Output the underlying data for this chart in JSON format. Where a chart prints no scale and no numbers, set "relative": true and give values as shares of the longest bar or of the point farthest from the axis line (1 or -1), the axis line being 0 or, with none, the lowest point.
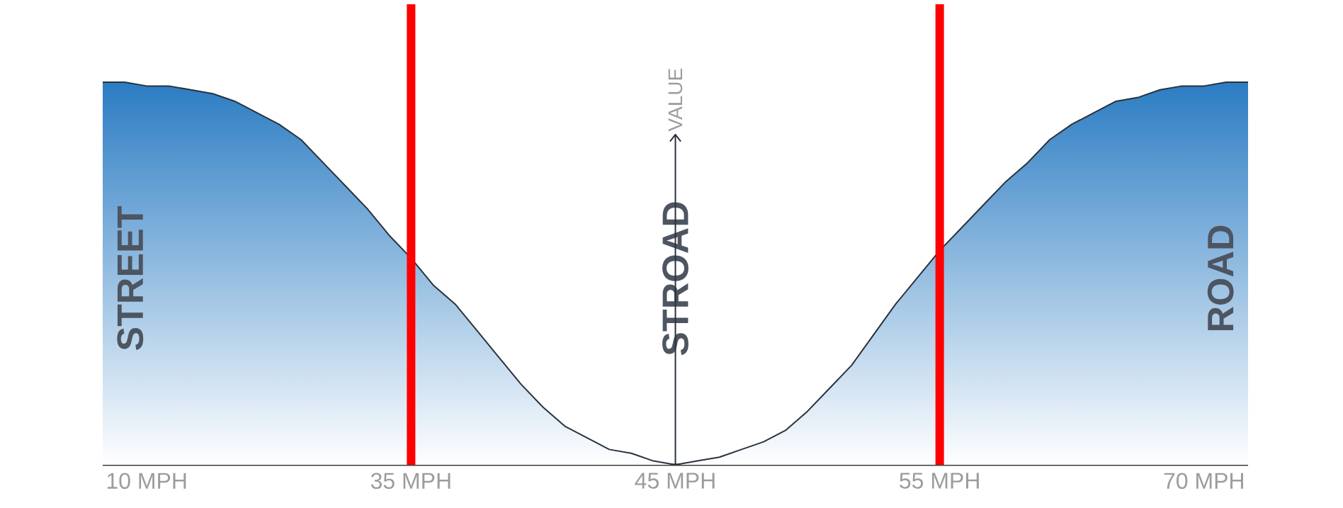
{
  "chart_data": {
    "type": "area",
    "ylabel": "VALUE",
    "relative": true,
    "color": "#2b7cc3",
    "marker": "none",
    "categories": [
      null,
      null,
      "10 MPH",
      null,
      null,
      null,
      null,
      null,
      null,
      null,
      null,
      null,
      null,
      null,
      "35 MPH",
      null,
      null,
      null,
      null,
      null,
      null,
      null,
      null,
      null,
      null,
      null,
      "45 MPH",
      null,
      null,
      null,
      null,
      null,
      null,
      null,
      null,
      null,
      null,
      null,
      "55 MPH",
      null,
      null,
      null,
      null,
      null,
      null,
      null,
      null,
      null,
      null,
      null,
      "70 MPH",
      null,
      null
    ],
    "values": [
      1.0,
      1.0,
      0.99,
      0.99,
      0.98,
      0.97,
      0.95,
      0.92,
      0.89,
      0.85,
      0.79,
      0.73,
      0.67,
      0.6,
      0.54,
      0.47,
      0.42,
      0.35,
      0.28,
      0.21,
      0.15,
      0.1,
      0.07,
      0.04,
      0.03,
      0.01,
      0,
      0.01,
      0.02,
      0.04,
      0.06,
      0.09,
      0.14,
      0.2,
      0.26,
      0.34,
      0.42,
      0.49,
      0.56,
      0.62,
      0.68,
      0.74,
      0.79,
      0.85,
      0.89,
      0.92,
      0.95,
      0.96,
      0.98,
      0.99,
      0.99,
      1.0,
      1.0
    ],
    "annotations": [
      "STREET",
      "STROAD",
      "ROAD"
    ],
    "ref_lines": [
      {
        "axis": "x",
        "value": "35 MPH",
        "color": "#ff0000"
      },
      {
        "axis": "x",
        "value": "55 MPH",
        "color": "#ff0000"
      }
    ]
  }
}
